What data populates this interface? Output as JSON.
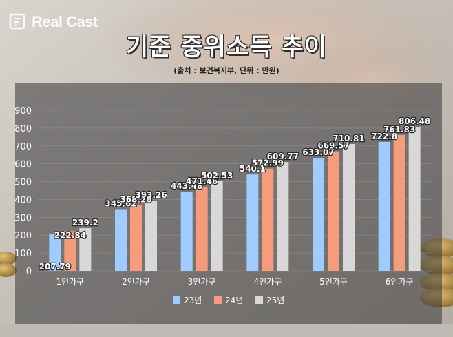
{
  "brand": {
    "logo_text": "Real Cast"
  },
  "header": {
    "title": "기준 중위소득 추이",
    "subtitle": "(출처 : 보건복지부, 단위 : 만원)"
  },
  "colors": {
    "s23": "#9fcbff",
    "s24": "#f79b7d",
    "s25": "#d8d8d8"
  },
  "chart_data": {
    "type": "bar",
    "title": "기준 중위소득 추이",
    "categories": [
      "1인가구",
      "2인가구",
      "3인가구",
      "4인가구",
      "5인가구",
      "6인가구"
    ],
    "series": [
      {
        "name": "23년",
        "values": [
          207.79,
          345.62,
          443.48,
          540.1,
          633.07,
          722.8
        ]
      },
      {
        "name": "24년",
        "values": [
          222.84,
          368.26,
          471.46,
          572.99,
          669.57,
          761.83
        ]
      },
      {
        "name": "25년",
        "values": [
          239.2,
          393.26,
          502.53,
          609.77,
          710.81,
          806.48
        ]
      }
    ],
    "ylim": [
      0,
      900
    ],
    "yticks": [
      0,
      100,
      200,
      300,
      400,
      500,
      600,
      700,
      800,
      900
    ],
    "grid": true,
    "legend": "bottom"
  }
}
